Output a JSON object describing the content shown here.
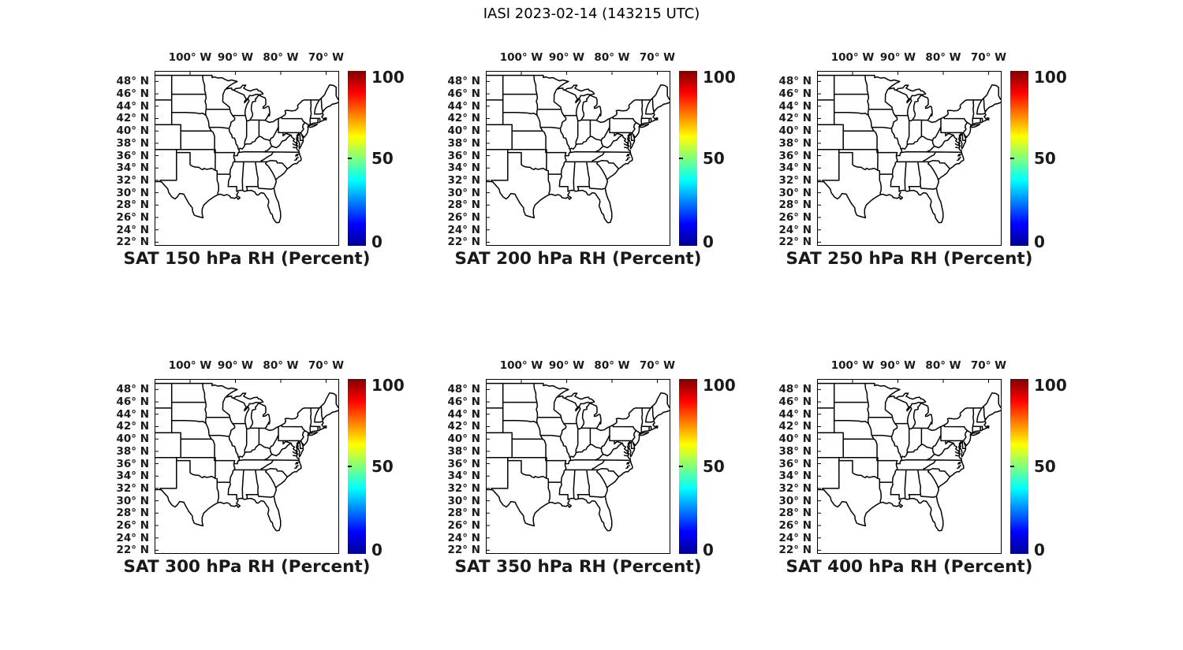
{
  "figure": {
    "title": "IASI 2023-02-14 (143215 UTC)",
    "background": "#ffffff"
  },
  "panels": [
    {
      "title": "SAT 150 hPa RH (Percent)"
    },
    {
      "title": "SAT 200 hPa RH (Percent)"
    },
    {
      "title": "SAT 250 hPa RH (Percent)"
    },
    {
      "title": "SAT 300 hPa RH (Percent)"
    },
    {
      "title": "SAT 350 hPa RH (Percent)"
    },
    {
      "title": "SAT 400 hPa RH (Percent)"
    }
  ],
  "axes": {
    "xticks": [
      {
        "label": "100° W",
        "lon": -100
      },
      {
        "label": "90° W",
        "lon": -90
      },
      {
        "label": "80° W",
        "lon": -80
      },
      {
        "label": "70° W",
        "lon": -70
      }
    ],
    "yticks": [
      {
        "label": "48° N",
        "lat": 48
      },
      {
        "label": "46° N",
        "lat": 46
      },
      {
        "label": "44° N",
        "lat": 44
      },
      {
        "label": "42° N",
        "lat": 42
      },
      {
        "label": "40° N",
        "lat": 40
      },
      {
        "label": "38° N",
        "lat": 38
      },
      {
        "label": "36° N",
        "lat": 36
      },
      {
        "label": "34° N",
        "lat": 34
      },
      {
        "label": "32° N",
        "lat": 32
      },
      {
        "label": "30° N",
        "lat": 30
      },
      {
        "label": "28° N",
        "lat": 28
      },
      {
        "label": "26° N",
        "lat": 26
      },
      {
        "label": "24° N",
        "lat": 24
      },
      {
        "label": "22° N",
        "lat": 22
      }
    ]
  },
  "colorbar": {
    "min": 0,
    "max": 100,
    "colormap": "jet",
    "bottom_color": "#000090",
    "top_color": "#800000",
    "ticks": [
      {
        "label": "100",
        "value": 100
      },
      {
        "label": "50",
        "value": 50
      },
      {
        "label": "0",
        "value": 0
      }
    ]
  },
  "chart_data": {
    "type": "map",
    "layout": {
      "rows": 2,
      "cols": 3,
      "grid": false,
      "legend": "colorbar right of each panel"
    },
    "suptitle": "IASI 2023-02-14 (143215 UTC)",
    "panels": [
      {
        "title": "SAT 150 hPa RH (Percent)",
        "pressure_hPa": 150,
        "variable": "RH",
        "units": "Percent"
      },
      {
        "title": "SAT 200 hPa RH (Percent)",
        "pressure_hPa": 200,
        "variable": "RH",
        "units": "Percent"
      },
      {
        "title": "SAT 250 hPa RH (Percent)",
        "pressure_hPa": 250,
        "variable": "RH",
        "units": "Percent"
      },
      {
        "title": "SAT 300 hPa RH (Percent)",
        "pressure_hPa": 300,
        "variable": "RH",
        "units": "Percent"
      },
      {
        "title": "SAT 350 hPa RH (Percent)",
        "pressure_hPa": 350,
        "variable": "RH",
        "units": "Percent"
      },
      {
        "title": "SAT 400 hPa RH (Percent)",
        "pressure_hPa": 400,
        "variable": "RH",
        "units": "Percent"
      }
    ],
    "x_axis": {
      "side": "top",
      "ticks_deg_west": [
        100,
        90,
        80,
        70
      ],
      "range_deg_west": [
        107.8,
        67.1
      ]
    },
    "y_axis": {
      "side": "left",
      "ticks_deg_north": [
        48,
        46,
        44,
        42,
        40,
        38,
        36,
        34,
        32,
        30,
        28,
        26,
        24,
        22
      ],
      "range_deg_north": [
        21.4,
        49.7
      ]
    },
    "colorbar": {
      "min": 0,
      "max": 100,
      "ticks": [
        0,
        50,
        100
      ],
      "colormap": "jet"
    },
    "plotted_values": "none visible - each panel shows empty U.S. state outlines (eastern/central CONUS) with no colored data points"
  }
}
